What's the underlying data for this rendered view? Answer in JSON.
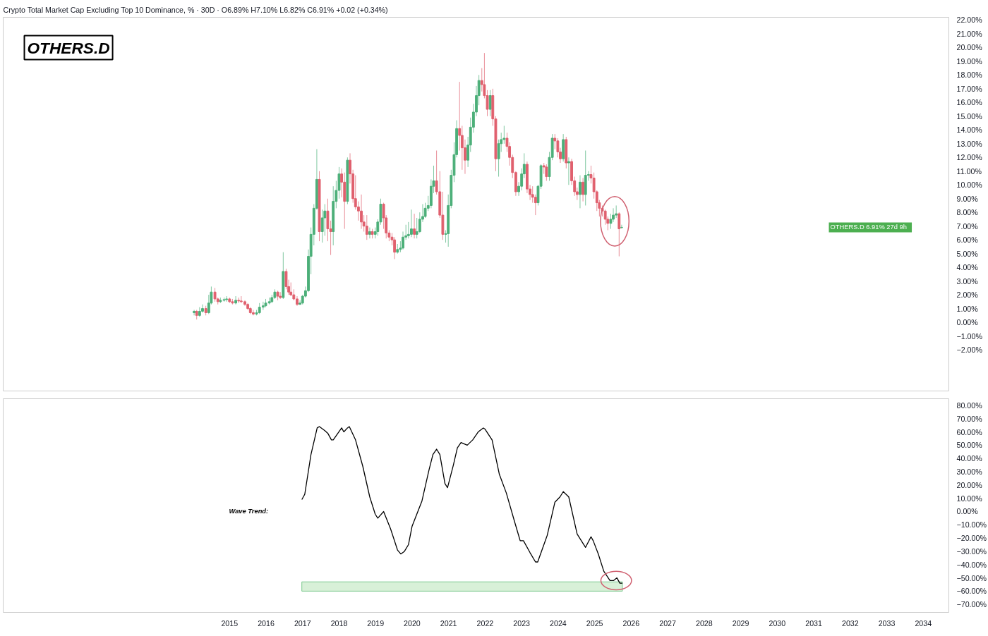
{
  "chart_data": [
    {
      "type": "candlestick",
      "title": "OTHERS.D",
      "subtitle": "Crypto Total Market Cap Excluding Top 10 Dominance, % · 30D · O6.89% H7.10% L6.82% C6.91% +0.02 (+0.34%)",
      "annotations": [
        "OTHERS.D  6.91%  27d 9h"
      ],
      "xlim": [
        2008.8,
        2034.7
      ],
      "ylim": [
        -5,
        22.2
      ],
      "xticks": [
        2015,
        2016,
        2017,
        2018,
        2019,
        2020,
        2021,
        2022,
        2023,
        2024,
        2025,
        2026,
        2027,
        2028,
        2029,
        2030,
        2031,
        2032,
        2033,
        2034
      ],
      "yticks": [
        {
          "value": 22,
          "label": "22.00%"
        },
        {
          "value": 21,
          "label": "21.00%"
        },
        {
          "value": 20,
          "label": "20.00%"
        },
        {
          "value": 19,
          "label": "19.00%"
        },
        {
          "value": 18,
          "label": "18.00%"
        },
        {
          "value": 17,
          "label": "17.00%"
        },
        {
          "value": 16,
          "label": "16.00%"
        },
        {
          "value": 15,
          "label": "15.00%"
        },
        {
          "value": 14,
          "label": "14.00%"
        },
        {
          "value": 13,
          "label": "13.00%"
        },
        {
          "value": 12,
          "label": "12.00%"
        },
        {
          "value": 11,
          "label": "11.00%"
        },
        {
          "value": 10,
          "label": "10.00%"
        },
        {
          "value": 9,
          "label": "9.00%"
        },
        {
          "value": 8,
          "label": "8.00%"
        },
        {
          "value": 7,
          "label": "7.00%"
        },
        {
          "value": 6,
          "label": "6.00%"
        },
        {
          "value": 5,
          "label": "5.00%"
        },
        {
          "value": 4,
          "label": "4.00%"
        },
        {
          "value": 3,
          "label": "3.00%"
        },
        {
          "value": 2,
          "label": "2.00%"
        },
        {
          "value": 1,
          "label": "1.00%"
        },
        {
          "value": 0,
          "label": "0.00%"
        },
        {
          "value": -1,
          "label": "−1.00%"
        },
        {
          "value": -2,
          "label": "−2.00%"
        }
      ],
      "tick_labels": "y",
      "series": [
        {
          "color": "#4caf79",
          "x": [
            2014.03,
            2014.18,
            2014.26,
            2014.43,
            2014.5,
            2014.75,
            2014.85,
            2014.92,
            2015.17,
            2015.74,
            2015.82,
            2015.92,
            2015.99,
            2016.09,
            2016.16,
            2016.24,
            2016.47,
            2016.93,
            2017.0,
            2017.08,
            2017.16,
            2017.23,
            2017.31,
            2017.39,
            2017.54,
            2017.61,
            2017.84,
            2017.92,
            2018.0,
            2018.23,
            2018.84,
            2018.99,
            2019.06,
            2019.14,
            2019.6,
            2019.68,
            2019.75,
            2019.83,
            2019.9,
            2019.98,
            2020.13,
            2020.21,
            2020.29,
            2020.36,
            2020.44,
            2020.52,
            2020.59,
            2020.92,
            2020.99,
            2021.07,
            2021.15,
            2021.22,
            2021.53,
            2021.6,
            2021.68,
            2021.76,
            2021.83,
            2022.14,
            2022.37,
            2022.44,
            2022.52,
            2022.92,
            2023.0,
            2023.07,
            2023.45,
            2023.53,
            2023.76,
            2023.84,
            2024.14,
            2024.29,
            2024.6,
            2024.75,
            2024.83,
            2025.44,
            2025.51,
            2025.59,
            2025.74
          ],
          "ohlc": [
            [
              0.7,
              0.9,
              0.5,
              0.8
            ],
            [
              0.5,
              1.1,
              0.4,
              0.8
            ],
            [
              0.8,
              1.3,
              0.7,
              1.0
            ],
            [
              0.7,
              2.0,
              0.6,
              1.4
            ],
            [
              1.4,
              2.6,
              1.3,
              2.2
            ],
            [
              1.5,
              1.8,
              1.4,
              1.6
            ],
            [
              1.6,
              1.8,
              1.5,
              1.65
            ],
            [
              1.65,
              1.9,
              1.5,
              1.7
            ],
            [
              1.4,
              1.9,
              1.3,
              1.6
            ],
            [
              0.6,
              0.9,
              0.5,
              0.7
            ],
            [
              0.7,
              1.4,
              0.6,
              1.1
            ],
            [
              1.1,
              1.5,
              0.9,
              1.2
            ],
            [
              1.2,
              1.7,
              1.1,
              1.4
            ],
            [
              1.4,
              1.8,
              1.3,
              1.5
            ],
            [
              1.5,
              2.0,
              1.4,
              1.8
            ],
            [
              1.8,
              2.4,
              1.7,
              2.2
            ],
            [
              1.8,
              5.1,
              1.7,
              3.7
            ],
            [
              1.3,
              1.6,
              1.3,
              1.4
            ],
            [
              1.4,
              2.0,
              1.3,
              1.9
            ],
            [
              1.9,
              2.6,
              1.8,
              2.3
            ],
            [
              2.3,
              5.3,
              2.2,
              4.8
            ],
            [
              4.8,
              6.9,
              3.5,
              6.4
            ],
            [
              6.4,
              8.6,
              5.6,
              8.3
            ],
            [
              8.3,
              12.6,
              8.2,
              10.4
            ],
            [
              6.6,
              8.2,
              5.8,
              7.6
            ],
            [
              7.6,
              8.6,
              6.3,
              8.1
            ],
            [
              6.6,
              9.9,
              5.6,
              8.8
            ],
            [
              8.8,
              10.3,
              8.3,
              9.6
            ],
            [
              9.6,
              11.3,
              9.0,
              10.8
            ],
            [
              8.8,
              12.0,
              8.6,
              11.8
            ],
            [
              6.4,
              6.9,
              6.1,
              6.6
            ],
            [
              6.4,
              6.9,
              6.1,
              6.6
            ],
            [
              6.6,
              7.5,
              6.3,
              7.3
            ],
            [
              7.3,
              9.0,
              7.1,
              8.6
            ],
            [
              5.1,
              5.7,
              5.0,
              5.3
            ],
            [
              5.3,
              5.9,
              5.1,
              5.4
            ],
            [
              5.4,
              6.6,
              5.3,
              6.2
            ],
            [
              6.2,
              7.1,
              6.0,
              6.3
            ],
            [
              6.3,
              7.3,
              6.1,
              6.4
            ],
            [
              6.4,
              8.2,
              6.2,
              6.8
            ],
            [
              6.4,
              7.6,
              6.1,
              6.6
            ],
            [
              6.6,
              8.0,
              6.5,
              7.5
            ],
            [
              7.5,
              8.6,
              7.3,
              7.7
            ],
            [
              7.7,
              8.7,
              7.6,
              8.3
            ],
            [
              8.3,
              9.2,
              8.1,
              8.5
            ],
            [
              8.5,
              10.4,
              8.3,
              9.9
            ],
            [
              9.9,
              11.4,
              9.4,
              10.3
            ],
            [
              6.4,
              6.7,
              5.8,
              6.45
            ],
            [
              6.45,
              9.3,
              5.5,
              8.5
            ],
            [
              8.5,
              11.1,
              8.3,
              10.7
            ],
            [
              10.7,
              13.1,
              10.2,
              12.2
            ],
            [
              12.2,
              14.7,
              12.0,
              14.1
            ],
            [
              11.8,
              13.5,
              11.3,
              12.9
            ],
            [
              12.9,
              14.9,
              12.4,
              14.2
            ],
            [
              14.2,
              15.9,
              13.8,
              15.3
            ],
            [
              15.3,
              17.2,
              15.0,
              16.5
            ],
            [
              16.5,
              18.0,
              15.8,
              17.6
            ],
            [
              15.5,
              16.9,
              15.0,
              16.5
            ],
            [
              11.9,
              13.3,
              10.6,
              13.0
            ],
            [
              13.0,
              13.8,
              12.4,
              13.3
            ],
            [
              13.3,
              14.3,
              13.0,
              13.4
            ],
            [
              9.5,
              10.2,
              9.2,
              9.9
            ],
            [
              9.9,
              11.2,
              9.6,
              10.8
            ],
            [
              10.8,
              12.3,
              10.5,
              11.5
            ],
            [
              8.7,
              10.0,
              8.5,
              9.9
            ],
            [
              9.9,
              11.5,
              9.7,
              11.4
            ],
            [
              10.6,
              12.4,
              10.3,
              12.0
            ],
            [
              12.0,
              13.7,
              11.8,
              13.4
            ],
            [
              11.9,
              13.7,
              11.7,
              13.3
            ],
            [
              11.6,
              12.0,
              10.0,
              11.7
            ],
            [
              9.3,
              10.7,
              8.3,
              10.2
            ],
            [
              9.3,
              12.5,
              8.5,
              10.7
            ],
            [
              10.7,
              11.0,
              10.3,
              10.75
            ],
            [
              7.2,
              7.9,
              6.8,
              7.5
            ],
            [
              7.5,
              8.3,
              7.3,
              7.8
            ],
            [
              7.8,
              8.5,
              7.6,
              7.9
            ],
            [
              6.89,
              7.1,
              6.82,
              6.91
            ]
          ]
        },
        {
          "color": "#e0606e",
          "x": [
            2014.1,
            2014.35,
            2014.6,
            2014.68,
            2015.0,
            2015.08,
            2015.25,
            2015.32,
            2015.42,
            2015.5,
            2015.57,
            2015.65,
            2016.32,
            2016.39,
            2016.55,
            2016.62,
            2016.68,
            2016.76,
            2016.85,
            2017.46,
            2017.69,
            2017.77,
            2018.07,
            2018.15,
            2018.3,
            2018.38,
            2018.45,
            2018.53,
            2018.61,
            2018.68,
            2018.76,
            2018.91,
            2019.22,
            2019.29,
            2019.37,
            2019.45,
            2019.52,
            2020.06,
            2020.67,
            2020.76,
            2020.84,
            2021.3,
            2021.37,
            2021.45,
            2021.91,
            2021.98,
            2022.06,
            2022.21,
            2022.29,
            2022.6,
            2022.67,
            2022.75,
            2022.84,
            2023.15,
            2023.23,
            2023.3,
            2023.38,
            2023.61,
            2023.68,
            2023.91,
            2023.99,
            2024.06,
            2024.22,
            2024.37,
            2024.45,
            2024.52,
            2024.68,
            2024.9,
            2024.98,
            2025.06,
            2025.13,
            2025.21,
            2025.29,
            2025.36,
            2025.67
          ],
          "ohlc": [
            [
              0.8,
              0.9,
              0.2,
              0.5
            ],
            [
              1.0,
              1.2,
              0.5,
              0.7
            ],
            [
              2.2,
              2.5,
              1.5,
              1.7
            ],
            [
              1.7,
              1.8,
              1.3,
              1.5
            ],
            [
              1.7,
              1.8,
              1.4,
              1.5
            ],
            [
              1.5,
              1.7,
              1.3,
              1.4
            ],
            [
              1.6,
              1.8,
              1.4,
              1.55
            ],
            [
              1.55,
              1.9,
              1.4,
              1.5
            ],
            [
              1.5,
              1.6,
              1.2,
              1.3
            ],
            [
              1.3,
              1.4,
              0.9,
              1.0
            ],
            [
              1.0,
              1.1,
              0.6,
              0.7
            ],
            [
              0.7,
              0.9,
              0.5,
              0.6
            ],
            [
              2.2,
              2.3,
              1.6,
              1.9
            ],
            [
              1.9,
              2.2,
              1.7,
              1.8
            ],
            [
              3.7,
              3.9,
              2.4,
              2.6
            ],
            [
              2.6,
              3.1,
              2.0,
              2.2
            ],
            [
              2.2,
              2.9,
              1.9,
              2.0
            ],
            [
              2.0,
              2.4,
              1.6,
              1.7
            ],
            [
              1.7,
              1.9,
              1.2,
              1.3
            ],
            [
              10.4,
              11.0,
              5.9,
              6.6
            ],
            [
              8.1,
              9.0,
              5.9,
              6.8
            ],
            [
              6.8,
              7.4,
              4.9,
              6.6
            ],
            [
              10.8,
              11.2,
              9.1,
              10.2
            ],
            [
              10.2,
              10.9,
              6.8,
              8.8
            ],
            [
              11.8,
              12.3,
              10.1,
              10.8
            ],
            [
              10.8,
              11.1,
              8.7,
              9.0
            ],
            [
              9.0,
              10.7,
              8.2,
              8.4
            ],
            [
              8.4,
              8.8,
              7.4,
              8.1
            ],
            [
              8.1,
              9.3,
              6.8,
              7.3
            ],
            [
              7.3,
              7.8,
              6.6,
              7.0
            ],
            [
              7.0,
              7.8,
              6.0,
              6.4
            ],
            [
              6.6,
              6.8,
              6.1,
              6.4
            ],
            [
              8.6,
              8.7,
              6.8,
              7.6
            ],
            [
              7.6,
              7.8,
              6.1,
              6.5
            ],
            [
              6.5,
              6.7,
              5.9,
              6.2
            ],
            [
              6.2,
              6.5,
              5.6,
              6.0
            ],
            [
              6.0,
              6.2,
              4.6,
              5.1
            ],
            [
              6.8,
              7.9,
              6.1,
              6.4
            ],
            [
              10.3,
              12.5,
              9.3,
              9.5
            ],
            [
              9.5,
              11.0,
              7.6,
              7.8
            ],
            [
              7.8,
              9.5,
              6.0,
              6.4
            ],
            [
              14.1,
              17.5,
              12.5,
              13.6
            ],
            [
              13.6,
              14.3,
              11.1,
              12.7
            ],
            [
              12.7,
              13.3,
              10.8,
              11.8
            ],
            [
              17.6,
              18.5,
              16.8,
              17.3
            ],
            [
              17.3,
              19.6,
              16.3,
              16.5
            ],
            [
              16.5,
              16.9,
              15.0,
              15.5
            ],
            [
              16.5,
              17.0,
              14.3,
              14.8
            ],
            [
              14.8,
              15.0,
              11.0,
              11.9
            ],
            [
              13.4,
              13.8,
              12.4,
              12.8
            ],
            [
              12.8,
              13.1,
              11.4,
              12.0
            ],
            [
              12.0,
              12.2,
              10.5,
              10.9
            ],
            [
              10.9,
              11.0,
              9.2,
              9.5
            ],
            [
              11.5,
              11.7,
              9.4,
              9.7
            ],
            [
              9.7,
              10.0,
              8.9,
              9.3
            ],
            [
              9.3,
              9.9,
              8.7,
              9.1
            ],
            [
              9.1,
              9.3,
              7.8,
              8.7
            ],
            [
              11.4,
              11.6,
              10.8,
              11.3
            ],
            [
              11.3,
              11.5,
              10.3,
              10.6
            ],
            [
              13.4,
              13.7,
              12.6,
              13.2
            ],
            [
              13.2,
              13.4,
              12.0,
              12.4
            ],
            [
              12.4,
              12.7,
              11.6,
              11.9
            ],
            [
              13.3,
              13.5,
              11.2,
              11.6
            ],
            [
              11.7,
              11.9,
              10.0,
              10.3
            ],
            [
              10.3,
              10.6,
              9.2,
              9.5
            ],
            [
              9.5,
              9.8,
              8.9,
              9.3
            ],
            [
              10.2,
              10.5,
              8.8,
              9.3
            ],
            [
              10.75,
              11.4,
              10.1,
              10.5
            ],
            [
              10.5,
              10.9,
              9.0,
              9.5
            ],
            [
              9.5,
              9.6,
              8.1,
              8.7
            ],
            [
              8.7,
              8.9,
              7.7,
              8.3
            ],
            [
              8.3,
              8.5,
              7.7,
              8.1
            ],
            [
              8.1,
              8.2,
              7.1,
              7.5
            ],
            [
              7.5,
              7.7,
              6.7,
              7.2
            ],
            [
              7.9,
              8.0,
              4.8,
              6.8
            ]
          ]
        }
      ]
    },
    {
      "type": "line",
      "annotations": [
        "Wave Trend:"
      ],
      "xlim": [
        2008.8,
        2034.7
      ],
      "ylim": [
        -76,
        85
      ],
      "xticks": [
        2015,
        2016,
        2017,
        2018,
        2019,
        2020,
        2021,
        2022,
        2023,
        2024,
        2025,
        2026,
        2027,
        2028,
        2029,
        2030,
        2031,
        2032,
        2033,
        2034
      ],
      "yticks": [
        {
          "value": 80,
          "label": "80.00%"
        },
        {
          "value": 70,
          "label": "70.00%"
        },
        {
          "value": 60,
          "label": "60.00%"
        },
        {
          "value": 50,
          "label": "50.00%"
        },
        {
          "value": 40,
          "label": "40.00%"
        },
        {
          "value": 30,
          "label": "30.00%"
        },
        {
          "value": 20,
          "label": "20.00%"
        },
        {
          "value": 10,
          "label": "10.00%"
        },
        {
          "value": 0,
          "label": "0.00%"
        },
        {
          "value": -10,
          "label": "−10.00%"
        },
        {
          "value": -20,
          "label": "−20.00%"
        },
        {
          "value": -30,
          "label": "−30.00%"
        },
        {
          "value": -40,
          "label": "−40.00%"
        },
        {
          "value": -50,
          "label": "−50.00%"
        },
        {
          "value": -60,
          "label": "−60.00%"
        },
        {
          "value": -70,
          "label": "−70.00%"
        }
      ],
      "bands": [
        {
          "axis": "y",
          "from": -60,
          "to": -53,
          "color": "#d8f0d8"
        }
      ],
      "line_style": "solid",
      "marker": "none",
      "series": [
        {
          "color": "#000000",
          "x": [
            2016.98,
            2017.06,
            2017.23,
            2017.4,
            2017.46,
            2017.61,
            2017.69,
            2017.79,
            2017.84,
            2018.07,
            2018.13,
            2018.23,
            2018.28,
            2018.45,
            2018.65,
            2018.84,
            2018.99,
            2019.06,
            2019.22,
            2019.41,
            2019.6,
            2019.69,
            2019.79,
            2019.9,
            2020.0,
            2020.27,
            2020.46,
            2020.57,
            2020.67,
            2020.76,
            2020.9,
            2020.97,
            2021.13,
            2021.24,
            2021.34,
            2021.51,
            2021.66,
            2021.81,
            2021.95,
            2022.0,
            2022.19,
            2022.39,
            2022.58,
            2022.81,
            2022.96,
            2023.05,
            2023.23,
            2023.38,
            2023.44,
            2023.7,
            2023.91,
            2024.05,
            2024.14,
            2024.29,
            2024.52,
            2024.75,
            2024.9,
            2024.96,
            2025.1,
            2025.25,
            2025.42,
            2025.52,
            2025.61,
            2025.69,
            2025.76
          ],
          "values": [
            9,
            13,
            43,
            63,
            64,
            61,
            59,
            54,
            54,
            63,
            60,
            63,
            64,
            54,
            34,
            11,
            -2,
            -5,
            0,
            -13,
            -29,
            -32,
            -30,
            -25,
            -11,
            8,
            31,
            43,
            47,
            43,
            21,
            18,
            35,
            48,
            52,
            50,
            54,
            60,
            63,
            62,
            54,
            28,
            14,
            -8,
            -22,
            -22,
            -31,
            -38,
            -38,
            -18,
            7,
            11,
            15,
            11,
            -17,
            -27,
            -19,
            -22,
            -32,
            -45,
            -52,
            -52,
            -50,
            -54,
            -54
          ]
        }
      ]
    }
  ]
}
